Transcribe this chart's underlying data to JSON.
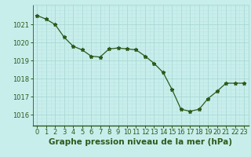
{
  "x": [
    0,
    1,
    2,
    3,
    4,
    5,
    6,
    7,
    8,
    9,
    10,
    11,
    12,
    13,
    14,
    15,
    16,
    17,
    18,
    19,
    20,
    21,
    22,
    23
  ],
  "y": [
    1021.5,
    1021.3,
    1021.0,
    1020.3,
    1019.8,
    1019.6,
    1019.25,
    1019.2,
    1019.65,
    1019.7,
    1019.65,
    1019.6,
    1019.25,
    1018.85,
    1018.35,
    1017.4,
    1016.3,
    1016.2,
    1016.3,
    1016.9,
    1017.3,
    1017.75,
    1017.75,
    1017.75
  ],
  "line_color": "#2d5a1b",
  "marker": "*",
  "marker_size": 3.5,
  "bg_color": "#c8eeec",
  "grid_major_color": "#a8d8d4",
  "grid_minor_color": "#b8e4e0",
  "title": "Graphe pression niveau de la mer (hPa)",
  "title_fontsize": 7.5,
  "ylim": [
    1015.4,
    1022.1
  ],
  "xlim": [
    -0.5,
    23.5
  ],
  "yticks": [
    1016,
    1017,
    1018,
    1019,
    1020,
    1021
  ],
  "xtick_labels": [
    "0",
    "1",
    "2",
    "3",
    "4",
    "5",
    "6",
    "7",
    "8",
    "9",
    "10",
    "11",
    "12",
    "13",
    "14",
    "15",
    "16",
    "17",
    "18",
    "19",
    "20",
    "21",
    "22",
    "23"
  ],
  "tick_fontsize": 6.0,
  "title_color": "#2d5a1b",
  "spine_color": "#2d5a1b",
  "bottom_spine_color": "#2d5a1b"
}
